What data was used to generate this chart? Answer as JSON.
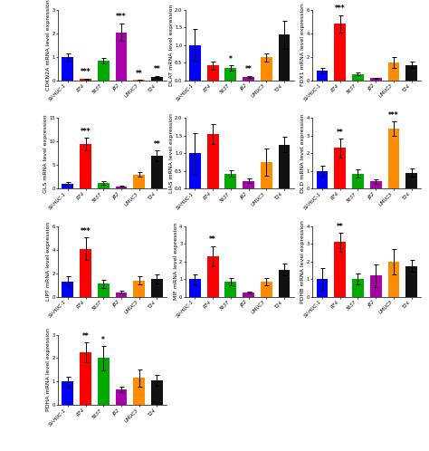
{
  "categories": [
    "SV-HUC-1",
    "RT4",
    "5637",
    "J82",
    "UMUC3",
    "T24"
  ],
  "bar_colors": [
    "#0000ff",
    "#ff0000",
    "#00aa00",
    "#aa00aa",
    "#ff8c00",
    "#111111"
  ],
  "subplots": [
    {
      "gene": "CDKN2A",
      "ylabel": "CDKN2A mRNA level expression",
      "ylim": [
        0,
        3
      ],
      "yticks": [
        0,
        1,
        2,
        3
      ],
      "values": [
        1.0,
        0.05,
        0.85,
        2.05,
        0.02,
        0.15
      ],
      "errors": [
        0.15,
        0.03,
        0.12,
        0.38,
        0.01,
        0.04
      ],
      "sig_above": {
        "1": "***",
        "3": "***",
        "4": "**",
        "5": "**"
      }
    },
    {
      "gene": "DLAT",
      "ylabel": "DLAT mRNA level expression",
      "ylim": [
        0,
        2.0
      ],
      "yticks": [
        0.0,
        0.5,
        1.0,
        1.5,
        2.0
      ],
      "values": [
        1.0,
        0.42,
        0.35,
        0.1,
        0.65,
        1.3
      ],
      "errors": [
        0.45,
        0.12,
        0.08,
        0.03,
        0.12,
        0.4
      ],
      "sig_above": {
        "2": "*",
        "3": "**"
      }
    },
    {
      "gene": "FDX1",
      "ylabel": "FDX1 mRNA level expression",
      "ylim": [
        0,
        6
      ],
      "yticks": [
        0,
        2,
        4,
        6
      ],
      "values": [
        0.8,
        4.8,
        0.55,
        0.18,
        1.5,
        1.3
      ],
      "errors": [
        0.22,
        0.75,
        0.15,
        0.05,
        0.45,
        0.28
      ],
      "sig_above": {
        "1": "***"
      }
    },
    {
      "gene": "GLS",
      "ylabel": "GLS mRNA level expression",
      "ylim": [
        0,
        15
      ],
      "yticks": [
        0,
        5,
        10,
        15
      ],
      "values": [
        1.0,
        9.5,
        1.2,
        0.5,
        3.0,
        7.0
      ],
      "errors": [
        0.35,
        1.3,
        0.35,
        0.12,
        0.55,
        1.1
      ],
      "sig_above": {
        "1": "***",
        "5": "**"
      }
    },
    {
      "gene": "LIAS",
      "ylabel": "LIAS mRNA level expression",
      "ylim": [
        0,
        2.0
      ],
      "yticks": [
        0.0,
        0.5,
        1.0,
        1.5,
        2.0
      ],
      "values": [
        1.0,
        1.55,
        0.42,
        0.22,
        0.75,
        1.25
      ],
      "errors": [
        0.58,
        0.28,
        0.09,
        0.06,
        0.38,
        0.22
      ],
      "sig_above": {}
    },
    {
      "gene": "DLD",
      "ylabel": "DLD mRNA level expression",
      "ylim": [
        0,
        4
      ],
      "yticks": [
        0,
        1,
        2,
        3,
        4
      ],
      "values": [
        1.0,
        2.3,
        0.85,
        0.4,
        3.4,
        0.9
      ],
      "errors": [
        0.32,
        0.52,
        0.22,
        0.12,
        0.42,
        0.22
      ],
      "sig_above": {
        "1": "**",
        "4": "***"
      }
    },
    {
      "gene": "LIPT",
      "ylabel": "LIPT mRNA level expression",
      "ylim": [
        0,
        6
      ],
      "yticks": [
        0,
        2,
        4,
        6
      ],
      "values": [
        1.3,
        4.1,
        1.1,
        0.4,
        1.4,
        1.5
      ],
      "errors": [
        0.42,
        0.95,
        0.32,
        0.12,
        0.32,
        0.38
      ],
      "sig_above": {
        "1": "***"
      }
    },
    {
      "gene": "MIF",
      "ylabel": "MIF mRNA level expression",
      "ylim": [
        0,
        4
      ],
      "yticks": [
        0,
        1,
        2,
        3,
        4
      ],
      "values": [
        1.0,
        2.3,
        0.85,
        0.25,
        0.85,
        1.55
      ],
      "errors": [
        0.27,
        0.58,
        0.22,
        0.06,
        0.22,
        0.32
      ],
      "sig_above": {
        "1": "**"
      }
    },
    {
      "gene": "PDHB",
      "ylabel": "PDHB mRNA level expression",
      "ylim": [
        0,
        4
      ],
      "yticks": [
        0,
        1,
        2,
        3,
        4
      ],
      "values": [
        1.0,
        3.1,
        1.0,
        1.2,
        2.0,
        1.75
      ],
      "errors": [
        0.62,
        0.52,
        0.32,
        0.65,
        0.72,
        0.32
      ],
      "sig_above": {
        "1": "**"
      }
    },
    {
      "gene": "PDHA",
      "ylabel": "PDHA mRNA level expression",
      "ylim": [
        0,
        3
      ],
      "yticks": [
        0,
        1,
        2,
        3
      ],
      "values": [
        1.0,
        2.25,
        2.0,
        0.65,
        1.15,
        1.05
      ],
      "errors": [
        0.22,
        0.42,
        0.52,
        0.12,
        0.38,
        0.22
      ],
      "sig_above": {
        "1": "**",
        "2": "*"
      }
    }
  ],
  "background_color": "#ffffff",
  "sig_fontsize": 5.5,
  "label_fontsize": 4.5,
  "tick_fontsize": 3.8
}
